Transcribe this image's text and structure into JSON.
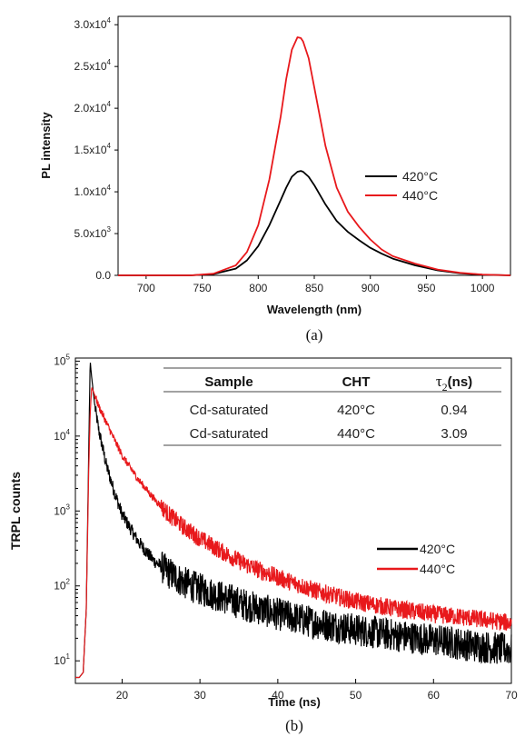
{
  "chart_data": [
    {
      "type": "line",
      "panel_caption": "(a)",
      "xlabel": "Wavelength (nm)",
      "ylabel": "PL intensity",
      "xlim": [
        675,
        1025
      ],
      "ylim": [
        0,
        31000
      ],
      "xticks": [
        700,
        750,
        800,
        850,
        900,
        950,
        1000
      ],
      "yticks": [
        {
          "value": 0,
          "mant": "0.0",
          "exp": ""
        },
        {
          "value": 5000,
          "mant": "5.0x10",
          "exp": "3"
        },
        {
          "value": 10000,
          "mant": "1.0x10",
          "exp": "4"
        },
        {
          "value": 15000,
          "mant": "1.5x10",
          "exp": "4"
        },
        {
          "value": 20000,
          "mant": "2.0x10",
          "exp": "4"
        },
        {
          "value": 25000,
          "mant": "2.5x10",
          "exp": "4"
        },
        {
          "value": 30000,
          "mant": "3.0x10",
          "exp": "4"
        }
      ],
      "legend_position": "right",
      "series": [
        {
          "name": "420°C",
          "color": "#000000",
          "x": [
            675,
            740,
            760,
            780,
            790,
            800,
            810,
            820,
            825,
            830,
            835,
            838,
            840,
            845,
            850,
            860,
            870,
            880,
            890,
            900,
            910,
            920,
            940,
            960,
            980,
            1000,
            1025
          ],
          "y": [
            0,
            0,
            150,
            800,
            1800,
            3500,
            6000,
            9000,
            10500,
            11800,
            12400,
            12500,
            12400,
            11800,
            10800,
            8500,
            6500,
            5200,
            4200,
            3300,
            2600,
            2000,
            1200,
            600,
            250,
            80,
            0
          ]
        },
        {
          "name": "440°C",
          "color": "#e8191c",
          "x": [
            675,
            740,
            760,
            780,
            790,
            800,
            810,
            820,
            825,
            830,
            835,
            838,
            840,
            845,
            850,
            860,
            870,
            880,
            890,
            900,
            910,
            920,
            940,
            960,
            980,
            1000,
            1025
          ],
          "y": [
            0,
            0,
            200,
            1200,
            2800,
            6000,
            11500,
            19000,
            23500,
            27000,
            28500,
            28400,
            28000,
            26000,
            22500,
            15500,
            10500,
            7600,
            5800,
            4300,
            3100,
            2300,
            1400,
            700,
            300,
            100,
            0
          ]
        }
      ]
    },
    {
      "type": "line",
      "panel_caption": "(b)",
      "xlabel": "Time (ns)",
      "ylabel": "TRPL counts",
      "xlim": [
        14,
        70
      ],
      "ylim": [
        5,
        110000
      ],
      "yscale": "log",
      "xticks": [
        20,
        30,
        40,
        50,
        60,
        70
      ],
      "yticks": [
        {
          "value": 10,
          "mant": "10",
          "exp": "1"
        },
        {
          "value": 100,
          "mant": "10",
          "exp": "2"
        },
        {
          "value": 1000,
          "mant": "10",
          "exp": "3"
        },
        {
          "value": 10000,
          "mant": "10",
          "exp": "4"
        },
        {
          "value": 100000,
          "mant": "10",
          "exp": "5"
        }
      ],
      "legend_position": "right",
      "series": [
        {
          "name": "420°C",
          "color": "#000000",
          "x": [
            14,
            14.5,
            15,
            15.4,
            15.7,
            15.9,
            16.1,
            16.5,
            17,
            18,
            19,
            20,
            22,
            24,
            26,
            28,
            30,
            33,
            36,
            40,
            45,
            50,
            55,
            60,
            65,
            70
          ],
          "y": [
            6,
            6,
            7,
            50,
            5000,
            100000,
            60000,
            25000,
            12000,
            4000,
            1800,
            900,
            400,
            220,
            150,
            110,
            90,
            70,
            55,
            42,
            32,
            26,
            22,
            19,
            16,
            14
          ],
          "noise": 0.22
        },
        {
          "name": "440°C",
          "color": "#e8191c",
          "x": [
            14,
            14.5,
            15,
            15.4,
            15.7,
            15.9,
            16.1,
            16.5,
            17,
            18,
            19,
            20,
            22,
            24,
            26,
            28,
            30,
            33,
            36,
            40,
            45,
            50,
            55,
            60,
            65,
            70
          ],
          "y": [
            6,
            6,
            7,
            50,
            3000,
            20000,
            45000,
            35000,
            25000,
            15000,
            9000,
            5500,
            2700,
            1500,
            900,
            600,
            430,
            280,
            190,
            130,
            85,
            62,
            50,
            42,
            37,
            32
          ],
          "noise": 0.12
        }
      ],
      "table": {
        "headers": [
          "Sample",
          "CHT",
          "τ2 (ns)"
        ],
        "header_tau": "τ",
        "header_tau_sub": "2",
        "header_tau_unit": "(ns)",
        "rows": [
          [
            "Cd-saturated",
            "420°C",
            "0.94"
          ],
          [
            "Cd-saturated",
            "440°C",
            "3.09"
          ]
        ]
      }
    }
  ]
}
